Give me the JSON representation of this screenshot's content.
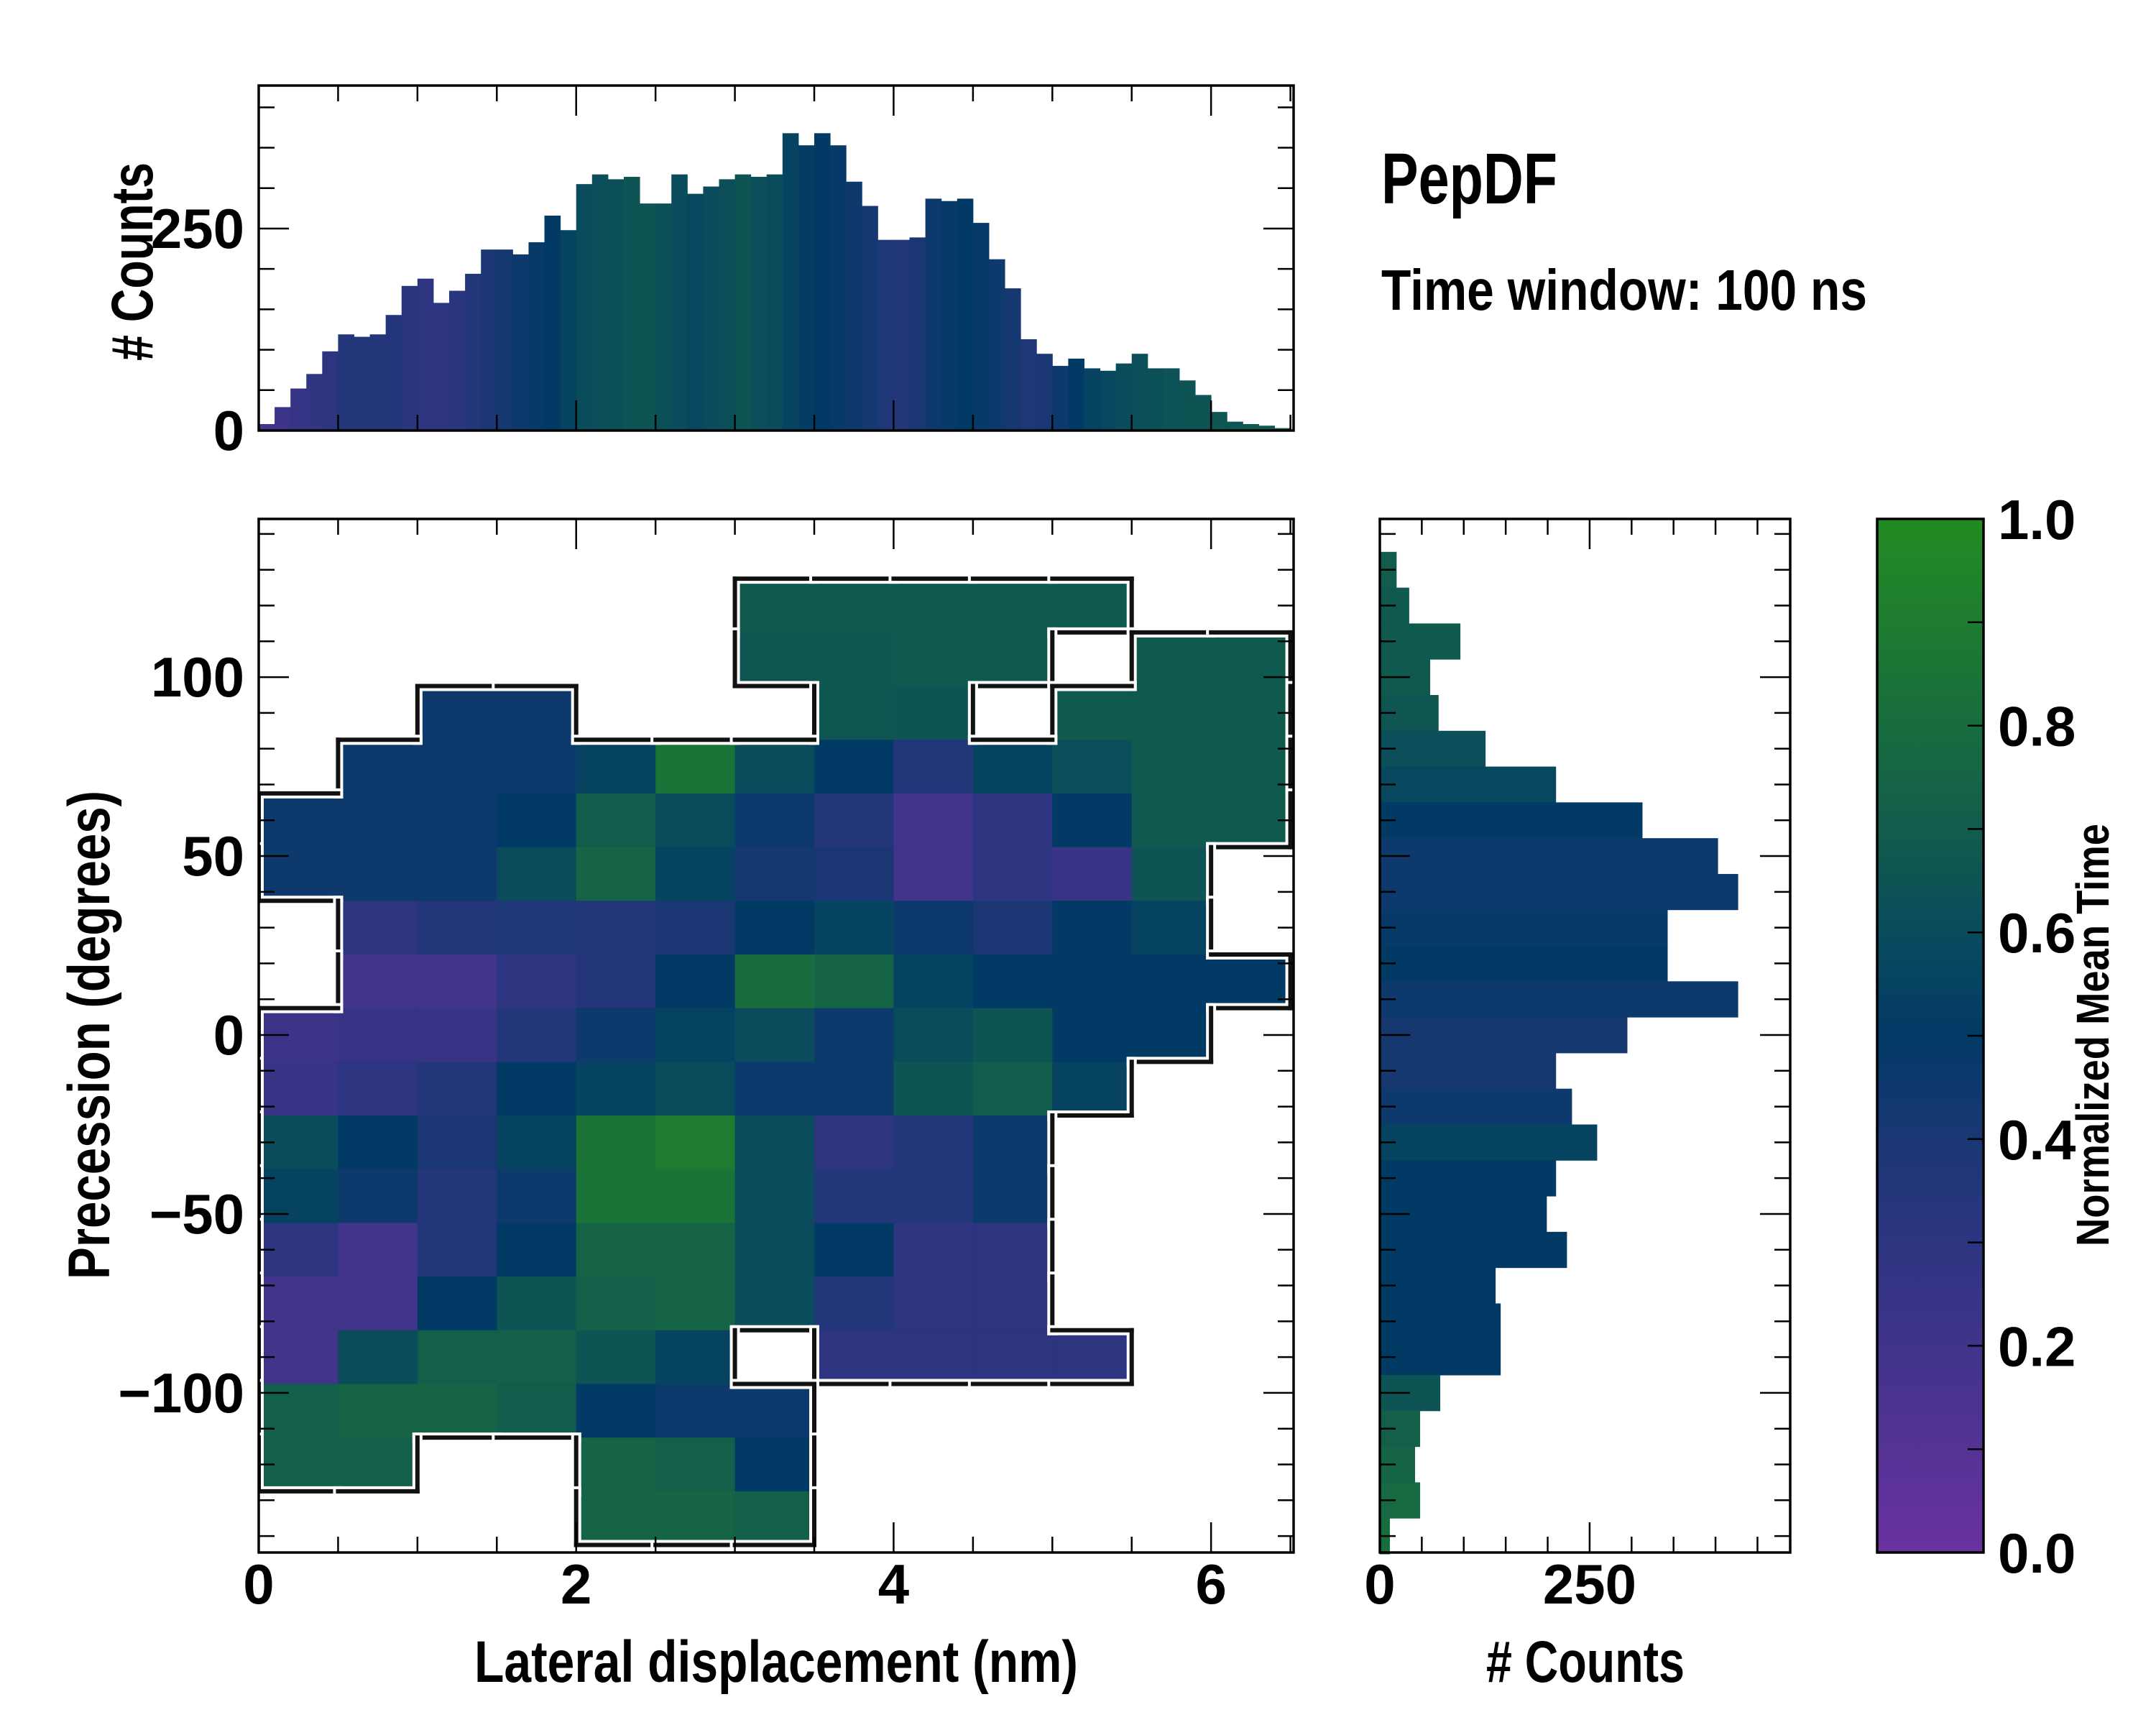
{
  "title": "PepDF",
  "subtitle": "Time window: 100 ns",
  "colormap": {
    "stops": [
      [
        0,
        "#6a329e"
      ],
      [
        0.15,
        "#4a3390"
      ],
      [
        0.3,
        "#2d3580"
      ],
      [
        0.4,
        "#1a3774"
      ],
      [
        0.5,
        "#023a66"
      ],
      [
        0.6,
        "#0a4b5c"
      ],
      [
        0.7,
        "#125c4c"
      ],
      [
        0.8,
        "#186c3e"
      ],
      [
        0.9,
        "#1d7c30"
      ],
      [
        1.0,
        "#228b22"
      ]
    ]
  },
  "chart_data": [
    {
      "type": "heatmap",
      "name": "main-2d-histogram",
      "xlabel": "Lateral displacement (nm)",
      "ylabel": "Precession (degrees)",
      "xlim": [
        0,
        6.52
      ],
      "ylim": [
        -144.6,
        144.2
      ],
      "xticks": [
        0,
        2,
        4,
        6
      ],
      "xtick_labels": [
        "0",
        "2",
        "4",
        "6"
      ],
      "xminor_step": 0.5,
      "yticks": [
        100,
        50,
        0,
        -50,
        -100
      ],
      "ytick_labels": [
        "100",
        "50",
        "0",
        "−50",
        "−100"
      ],
      "yminor_step": 10,
      "x_bin_centers": [
        0.25,
        0.75,
        1.25,
        1.75,
        2.25,
        2.75,
        3.25,
        3.75,
        4.25,
        4.75,
        5.25,
        5.75,
        6.25
      ],
      "y_bin_centers": [
        135,
        120,
        105,
        90,
        75,
        60,
        45,
        30,
        15,
        0,
        -15,
        -30,
        -45,
        -60,
        -75,
        -90,
        -105,
        -120,
        -135
      ],
      "bin_width_x": 0.5,
      "bin_width_y": 15,
      "values": [
        [
          null,
          null,
          null,
          null,
          null,
          null,
          null,
          null,
          null,
          null,
          null,
          null,
          null
        ],
        [
          null,
          null,
          null,
          null,
          null,
          null,
          0.68,
          0.68,
          0.68,
          0.68,
          0.68,
          null,
          null
        ],
        [
          null,
          null,
          null,
          null,
          null,
          null,
          0.66,
          0.67,
          0.68,
          0.68,
          null,
          0.68,
          0.68
        ],
        [
          null,
          null,
          0.45,
          0.45,
          null,
          null,
          null,
          0.66,
          0.65,
          null,
          0.68,
          0.68,
          0.68
        ],
        [
          null,
          0.45,
          0.45,
          0.45,
          0.55,
          0.85,
          0.6,
          0.5,
          0.35,
          0.55,
          0.62,
          0.68,
          0.68
        ],
        [
          0.45,
          0.45,
          0.45,
          0.5,
          0.7,
          0.6,
          0.45,
          0.35,
          0.2,
          0.3,
          0.5,
          0.68,
          0.68
        ],
        [
          0.45,
          0.45,
          0.45,
          0.6,
          0.75,
          0.55,
          0.42,
          0.4,
          0.2,
          0.3,
          0.25,
          0.65,
          null
        ],
        [
          null,
          0.3,
          0.35,
          0.38,
          0.35,
          0.4,
          0.5,
          0.55,
          0.45,
          0.4,
          0.5,
          0.55,
          null
        ],
        [
          null,
          0.2,
          0.2,
          0.3,
          0.35,
          0.5,
          0.8,
          0.75,
          0.55,
          0.5,
          0.5,
          0.5,
          0.5
        ],
        [
          0.22,
          0.25,
          0.25,
          0.35,
          0.45,
          0.55,
          0.6,
          0.45,
          0.6,
          0.65,
          0.5,
          0.5,
          null
        ],
        [
          0.25,
          0.3,
          0.35,
          0.5,
          0.55,
          0.6,
          0.45,
          0.45,
          0.65,
          0.7,
          0.55,
          null,
          null
        ],
        [
          0.6,
          0.5,
          0.4,
          0.55,
          0.85,
          0.9,
          0.6,
          0.3,
          0.35,
          0.45,
          null,
          null,
          null
        ],
        [
          0.55,
          0.45,
          0.35,
          0.45,
          0.85,
          0.85,
          0.6,
          0.35,
          0.35,
          0.45,
          null,
          null,
          null
        ],
        [
          0.3,
          0.2,
          0.35,
          0.5,
          0.75,
          0.75,
          0.6,
          0.5,
          0.3,
          0.3,
          null,
          null,
          null
        ],
        [
          0.2,
          0.2,
          0.5,
          0.65,
          0.72,
          0.75,
          0.6,
          0.35,
          0.3,
          0.3,
          null,
          null,
          null
        ],
        [
          0.2,
          0.6,
          0.72,
          0.72,
          0.65,
          0.55,
          null,
          0.3,
          0.3,
          0.3,
          0.3,
          null,
          null
        ],
        [
          0.72,
          0.75,
          0.75,
          0.7,
          0.5,
          0.45,
          0.45,
          null,
          null,
          null,
          null,
          null,
          null
        ],
        [
          0.72,
          0.72,
          null,
          null,
          0.75,
          0.72,
          0.5,
          null,
          null,
          null,
          null,
          null,
          null
        ],
        [
          null,
          null,
          null,
          null,
          0.75,
          0.75,
          0.72,
          null,
          null,
          null,
          null,
          null,
          null
        ]
      ]
    },
    {
      "type": "bar",
      "name": "top-marginal-histogram",
      "ylabel": "# Counts",
      "xlim": [
        0,
        6.52
      ],
      "ylim": [
        0,
        427
      ],
      "yticks": [
        0,
        250
      ],
      "ytick_labels": [
        "0",
        "250"
      ],
      "yminor_step": 50,
      "bin_width": 0.1,
      "bin_start": 0,
      "counts": [
        8,
        29,
        52,
        70,
        98,
        119,
        116,
        119,
        143,
        179,
        188,
        158,
        173,
        194,
        224,
        224,
        218,
        233,
        266,
        248,
        305,
        317,
        311,
        314,
        281,
        281,
        317,
        293,
        302,
        311,
        317,
        314,
        317,
        368,
        353,
        368,
        353,
        308,
        278,
        236,
        236,
        239,
        287,
        284,
        287,
        257,
        212,
        176,
        113,
        95,
        80,
        89,
        77,
        74,
        83,
        95,
        77,
        77,
        62,
        44,
        23,
        11,
        8,
        6,
        3
      ],
      "mean_time": [
        0.2,
        0.22,
        0.25,
        0.28,
        0.3,
        0.35,
        0.35,
        0.35,
        0.35,
        0.32,
        0.3,
        0.3,
        0.32,
        0.35,
        0.4,
        0.42,
        0.45,
        0.48,
        0.5,
        0.55,
        0.6,
        0.62,
        0.63,
        0.65,
        0.65,
        0.63,
        0.6,
        0.58,
        0.6,
        0.62,
        0.65,
        0.62,
        0.6,
        0.55,
        0.52,
        0.5,
        0.48,
        0.45,
        0.42,
        0.38,
        0.35,
        0.4,
        0.45,
        0.48,
        0.5,
        0.48,
        0.45,
        0.42,
        0.38,
        0.4,
        0.45,
        0.5,
        0.55,
        0.58,
        0.6,
        0.62,
        0.63,
        0.64,
        0.65,
        0.65,
        0.66,
        0.66,
        0.67,
        0.67,
        0.68
      ]
    },
    {
      "type": "bar",
      "orientation": "horizontal",
      "name": "right-marginal-histogram",
      "xlabel": "# Counts",
      "xlim": [
        0,
        489
      ],
      "xticks": [
        0,
        250
      ],
      "xtick_labels": [
        "0",
        "250"
      ],
      "xminor_step": 50,
      "bin_width": 10,
      "bin_centers": [
        140,
        130,
        120,
        110,
        100,
        90,
        80,
        70,
        60,
        50,
        40,
        30,
        20,
        10,
        0,
        -10,
        -20,
        -30,
        -40,
        -50,
        -60,
        -70,
        -80,
        -90,
        -100,
        -110,
        -120,
        -130,
        -140
      ],
      "counts": [
        0,
        20,
        35,
        96,
        60,
        70,
        126,
        210,
        313,
        403,
        427,
        343,
        343,
        427,
        295,
        210,
        229,
        259,
        210,
        199,
        223,
        138,
        144,
        144,
        72,
        48,
        42,
        48,
        12
      ],
      "mean_time": [
        0.7,
        0.7,
        0.68,
        0.68,
        0.68,
        0.66,
        0.62,
        0.58,
        0.5,
        0.45,
        0.45,
        0.48,
        0.5,
        0.45,
        0.42,
        0.42,
        0.45,
        0.55,
        0.5,
        0.5,
        0.5,
        0.5,
        0.5,
        0.5,
        0.65,
        0.72,
        0.75,
        0.78,
        0.8
      ]
    },
    {
      "type": "colorbar",
      "name": "colorbar",
      "label": "Normalized Mean Time",
      "range": [
        0,
        1
      ],
      "ticks": [
        0,
        0.2,
        0.4,
        0.6,
        0.8,
        1.0
      ],
      "tick_labels": [
        "0.0",
        "0.2",
        "0.4",
        "0.6",
        "0.8",
        "1.0"
      ],
      "minor_step": 0.1
    }
  ]
}
